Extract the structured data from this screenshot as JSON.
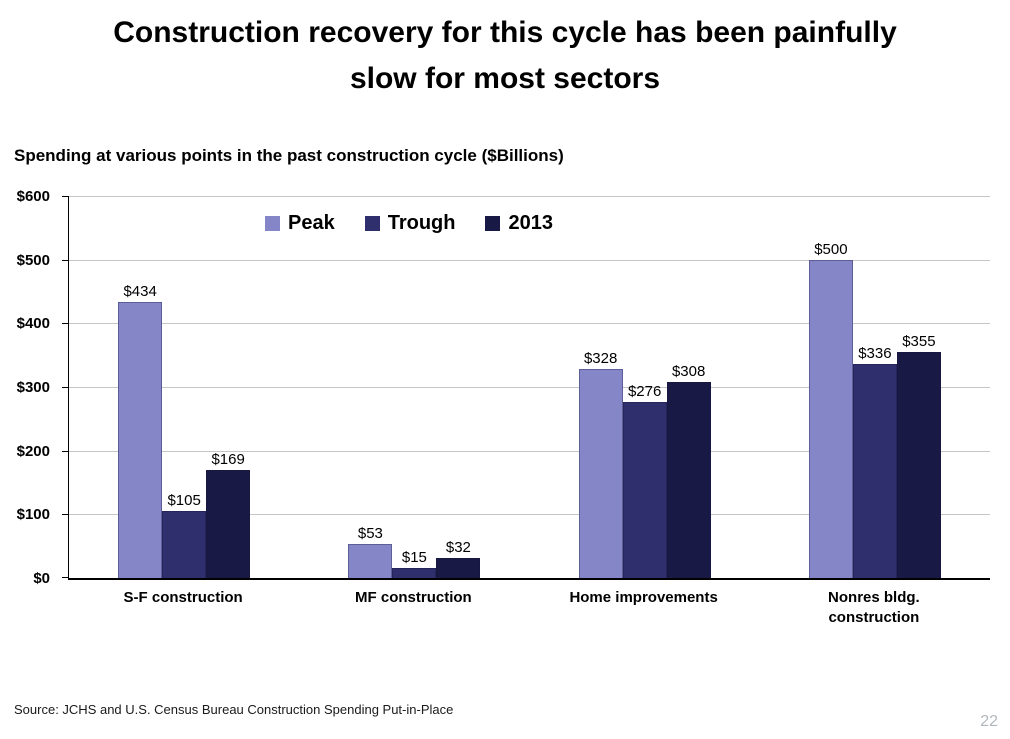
{
  "slide": {
    "title_line1": "Construction recovery for this cycle has been painfully",
    "title_line2": "slow for most sectors",
    "subtitle": "Spending at various points in the past construction cycle ($Billions)",
    "source": "Source: JCHS and U.S. Census Bureau Construction Spending Put-in-Place",
    "page_number": "22"
  },
  "chart_data": {
    "type": "bar",
    "title": "Spending at various points in the past construction cycle ($Billions)",
    "categories": [
      "S-F construction",
      "MF construction",
      "Home improvements",
      "Nonres bldg. construction"
    ],
    "series": [
      {
        "name": "Peak",
        "color": "#8486C8",
        "values": [
          434,
          53,
          328,
          500
        ]
      },
      {
        "name": "Trough",
        "color": "#2F2F6E",
        "values": [
          105,
          15,
          276,
          336
        ]
      },
      {
        "name": "2013",
        "color": "#191945",
        "values": [
          169,
          32,
          308,
          355
        ]
      }
    ],
    "value_prefix": "$",
    "xlabel": "",
    "ylabel": "",
    "ylim": [
      0,
      600
    ],
    "ytick_step": 100,
    "ytick_labels": [
      "$0",
      "$100",
      "$200",
      "$300",
      "$400",
      "$500",
      "$600"
    ],
    "grid": true,
    "legend_position": "top-center-inside"
  }
}
